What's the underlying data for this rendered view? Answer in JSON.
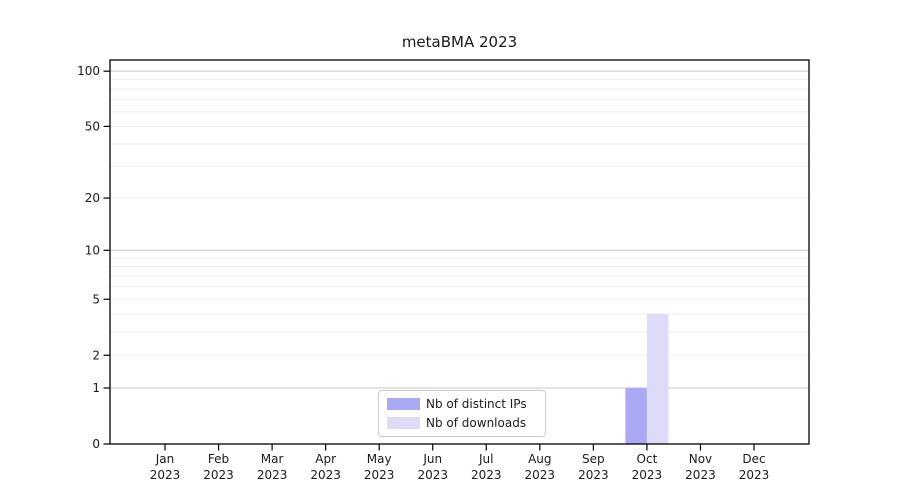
{
  "chart_data": {
    "type": "bar",
    "title": "metaBMA 2023",
    "categories": [
      "Jan",
      "Feb",
      "Mar",
      "Apr",
      "May",
      "Jun",
      "Jul",
      "Aug",
      "Sep",
      "Oct",
      "Nov",
      "Dec"
    ],
    "x_year": "2023",
    "series": [
      {
        "name": "Nb of distinct IPs",
        "color": "#a9a9f4",
        "values": [
          0,
          0,
          0,
          0,
          0,
          0,
          0,
          0,
          0,
          1,
          0,
          0
        ]
      },
      {
        "name": "Nb of downloads",
        "color": "#dcdcf8",
        "values": [
          0,
          0,
          0,
          0,
          0,
          0,
          0,
          0,
          0,
          4,
          0,
          0
        ]
      }
    ],
    "xlabel": "",
    "ylabel": "",
    "y_ticks": [
      0,
      1,
      2,
      5,
      10,
      20,
      50,
      100
    ],
    "major_gridline_values": [
      1,
      10,
      100
    ],
    "minor_gridline_values": [
      2,
      3,
      4,
      5,
      6,
      7,
      8,
      9,
      20,
      30,
      40,
      50,
      60,
      70,
      80,
      90
    ],
    "y_scale": "log10(1+v)",
    "ylim": [
      0,
      115
    ],
    "grid": true,
    "legend_position": "lower-center-inside"
  },
  "colors": {
    "background": "#ffffff",
    "axis": "#000000",
    "text": "#1a1a1a",
    "major_grid": "#c9c9c9",
    "minor_grid": "#ededed",
    "legend_border": "#cccccc",
    "legend_background": "#ffffff"
  }
}
